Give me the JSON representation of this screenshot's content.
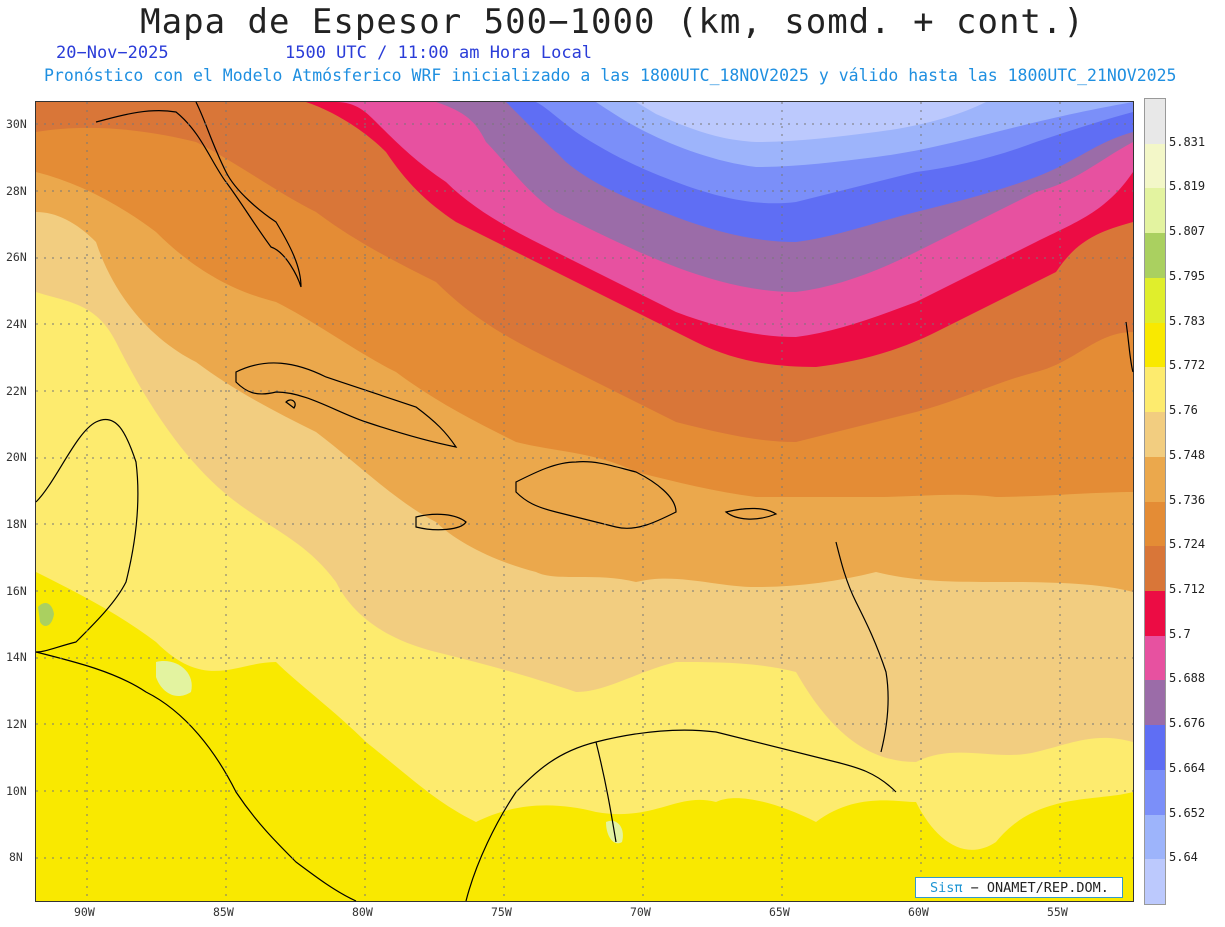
{
  "header": {
    "title": "Mapa de Espesor 500−1000 (km, somd. + cont.)",
    "date": "20−Nov−2025",
    "time": "1500 UTC / 11:00 am Hora Local",
    "model_note": "Pronóstico con el Modelo Atmósferico WRF inicializado a las 1800UTC_18NOV2025 y válido hasta las  1800UTC_21NOV2025"
  },
  "map": {
    "lat_labels": [
      "30N",
      "28N",
      "26N",
      "24N",
      "22N",
      "20N",
      "18N",
      "16N",
      "14N",
      "12N",
      "10N",
      "8N"
    ],
    "lon_labels": [
      "90W",
      "85W",
      "80W",
      "75W",
      "70W",
      "65W",
      "60W",
      "55W"
    ],
    "lat_values": [
      30,
      28,
      26,
      24,
      22,
      20,
      18,
      16,
      14,
      12,
      10,
      8
    ],
    "lon_values": [
      -90,
      -85,
      -80,
      -75,
      -70,
      -65,
      -60,
      -55
    ]
  },
  "colorbar": {
    "labels": [
      "5.831",
      "5.819",
      "5.807",
      "5.795",
      "5.783",
      "5.772",
      "5.76",
      "5.748",
      "5.736",
      "5.724",
      "5.712",
      "5.7",
      "5.688",
      "5.676",
      "5.664",
      "5.652",
      "5.64"
    ],
    "colors": [
      "#e8e8e8",
      "#f3f7c8",
      "#e3f3a0",
      "#aad060",
      "#e0ee2c",
      "#f9e900",
      "#fdeb6e",
      "#f2cd80",
      "#eba84c",
      "#e48c35",
      "#d97638",
      "#ec0c44",
      "#e751a0",
      "#9b6ca8",
      "#5f6ef4",
      "#7b8ff9",
      "#9db4fb",
      "#bcc9fd"
    ]
  },
  "credit": {
    "brand": "Sisπ",
    "text": "− ONAMET/REP.DOM."
  }
}
